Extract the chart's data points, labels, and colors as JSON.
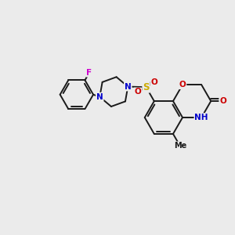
{
  "background_color": "#ebebeb",
  "bond_color": "#1a1a1a",
  "atom_colors": {
    "N": "#0000cc",
    "O": "#cc0000",
    "S": "#ccaa00",
    "F": "#cc00cc",
    "C": "#1a1a1a"
  },
  "font_size": 7.5,
  "lw": 1.4,
  "figsize": [
    3.0,
    3.0
  ],
  "dpi": 100
}
